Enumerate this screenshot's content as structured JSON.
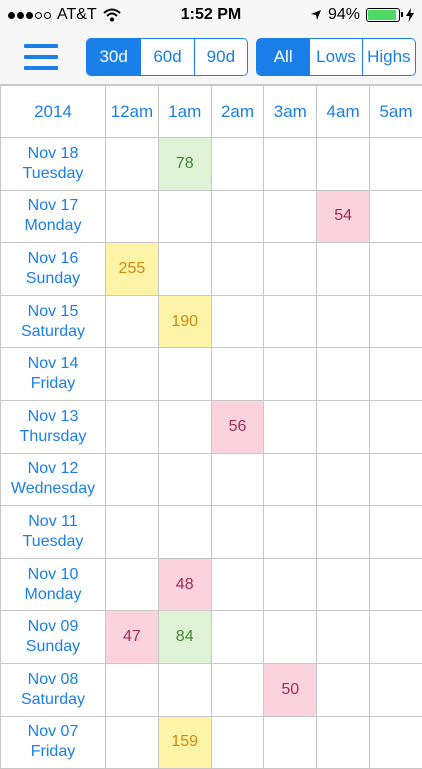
{
  "status_bar": {
    "carrier": "AT&T",
    "time": "1:52 PM",
    "battery": "94%"
  },
  "toolbar": {
    "range_options": [
      "30d",
      "60d",
      "90d"
    ],
    "range_selected": "30d",
    "filter_options": [
      "All",
      "Lows",
      "Highs"
    ],
    "filter_selected": "All"
  },
  "table": {
    "year": "2014",
    "hours": [
      "12am",
      "1am",
      "2am",
      "3am",
      "4am",
      "5am"
    ],
    "rows": [
      {
        "date": "Nov 18",
        "day": "Tuesday",
        "cells": [
          null,
          {
            "v": "78",
            "k": "normal"
          },
          null,
          null,
          null,
          null
        ]
      },
      {
        "date": "Nov 17",
        "day": "Monday",
        "cells": [
          null,
          null,
          null,
          null,
          {
            "v": "54",
            "k": "low"
          },
          null
        ]
      },
      {
        "date": "Nov 16",
        "day": "Sunday",
        "cells": [
          {
            "v": "255",
            "k": "high"
          },
          null,
          null,
          null,
          null,
          null
        ]
      },
      {
        "date": "Nov 15",
        "day": "Saturday",
        "cells": [
          null,
          {
            "v": "190",
            "k": "high"
          },
          null,
          null,
          null,
          null
        ]
      },
      {
        "date": "Nov 14",
        "day": "Friday",
        "cells": [
          null,
          null,
          null,
          null,
          null,
          null
        ]
      },
      {
        "date": "Nov 13",
        "day": "Thursday",
        "cells": [
          null,
          null,
          {
            "v": "56",
            "k": "low"
          },
          null,
          null,
          null
        ]
      },
      {
        "date": "Nov 12",
        "day": "Wednesday",
        "cells": [
          null,
          null,
          null,
          null,
          null,
          null
        ]
      },
      {
        "date": "Nov 11",
        "day": "Tuesday",
        "cells": [
          null,
          null,
          null,
          null,
          null,
          null
        ]
      },
      {
        "date": "Nov 10",
        "day": "Monday",
        "cells": [
          null,
          {
            "v": "48",
            "k": "low"
          },
          null,
          null,
          null,
          null
        ]
      },
      {
        "date": "Nov 09",
        "day": "Sunday",
        "cells": [
          {
            "v": "47",
            "k": "low"
          },
          {
            "v": "84",
            "k": "normal"
          },
          null,
          null,
          null,
          null
        ]
      },
      {
        "date": "Nov 08",
        "day": "Saturday",
        "cells": [
          null,
          null,
          null,
          {
            "v": "50",
            "k": "low"
          },
          null,
          null
        ]
      },
      {
        "date": "Nov 07",
        "day": "Friday",
        "cells": [
          null,
          {
            "v": "159",
            "k": "high"
          },
          null,
          null,
          null,
          null
        ]
      }
    ]
  },
  "colors": {
    "accent": "#1a7fe8",
    "high": "#fdf4a8",
    "low": "#fbd3df",
    "normal": "#dff2d6"
  }
}
